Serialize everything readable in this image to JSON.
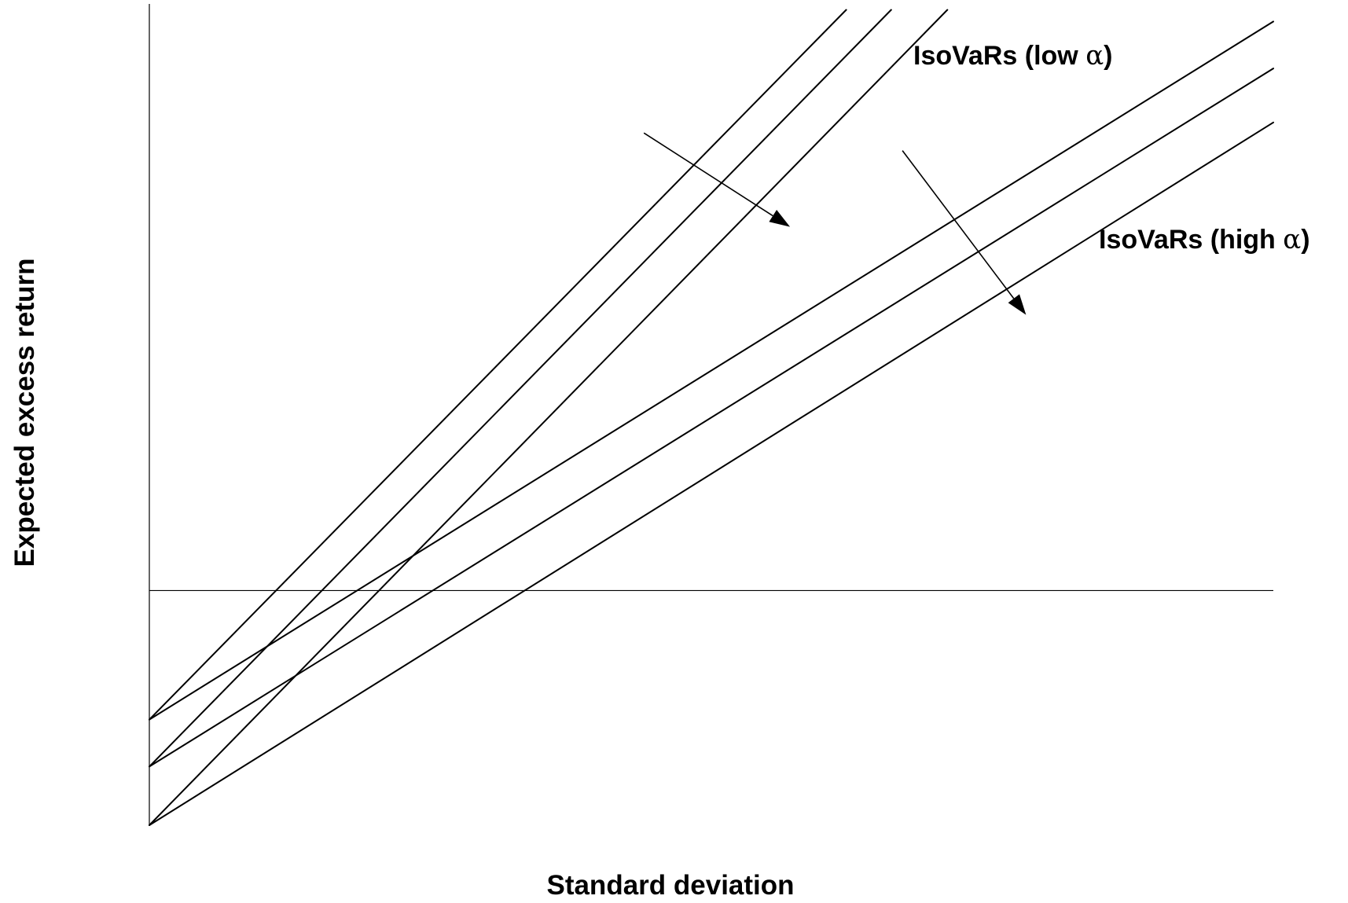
{
  "chart_data": {
    "type": "line",
    "title": "",
    "xlabel": "Standard deviation",
    "ylabel": "Expected excess return",
    "xlim": [
      0,
      10
    ],
    "ylim": [
      -2,
      5
    ],
    "grid": false,
    "series": [
      {
        "group": "low",
        "x": [
          0,
          6.2
        ],
        "y": [
          -1.1,
          4.95
        ]
      },
      {
        "group": "low",
        "x": [
          0,
          6.6
        ],
        "y": [
          -1.5,
          4.95
        ]
      },
      {
        "group": "low",
        "x": [
          0,
          7.1
        ],
        "y": [
          -2.0,
          4.95
        ]
      },
      {
        "group": "high",
        "x": [
          0,
          10
        ],
        "y": [
          -1.1,
          4.85
        ]
      },
      {
        "group": "high",
        "x": [
          0,
          10
        ],
        "y": [
          -1.5,
          4.45
        ]
      },
      {
        "group": "high",
        "x": [
          0,
          10
        ],
        "y": [
          -2.0,
          3.99
        ]
      }
    ],
    "annotations": [
      {
        "name": "low",
        "prefix": "IsoVaRs (low ",
        "greek": "α",
        "suffix": ")"
      },
      {
        "name": "high",
        "prefix": "IsoVaRs (high ",
        "greek": "α",
        "suffix": ")"
      }
    ],
    "arrows": [
      {
        "group": "low",
        "from": [
          4.4,
          3.9
        ],
        "to": [
          5.7,
          3.1
        ]
      },
      {
        "group": "high",
        "from": [
          6.7,
          3.75
        ],
        "to": [
          7.8,
          2.35
        ]
      }
    ]
  }
}
